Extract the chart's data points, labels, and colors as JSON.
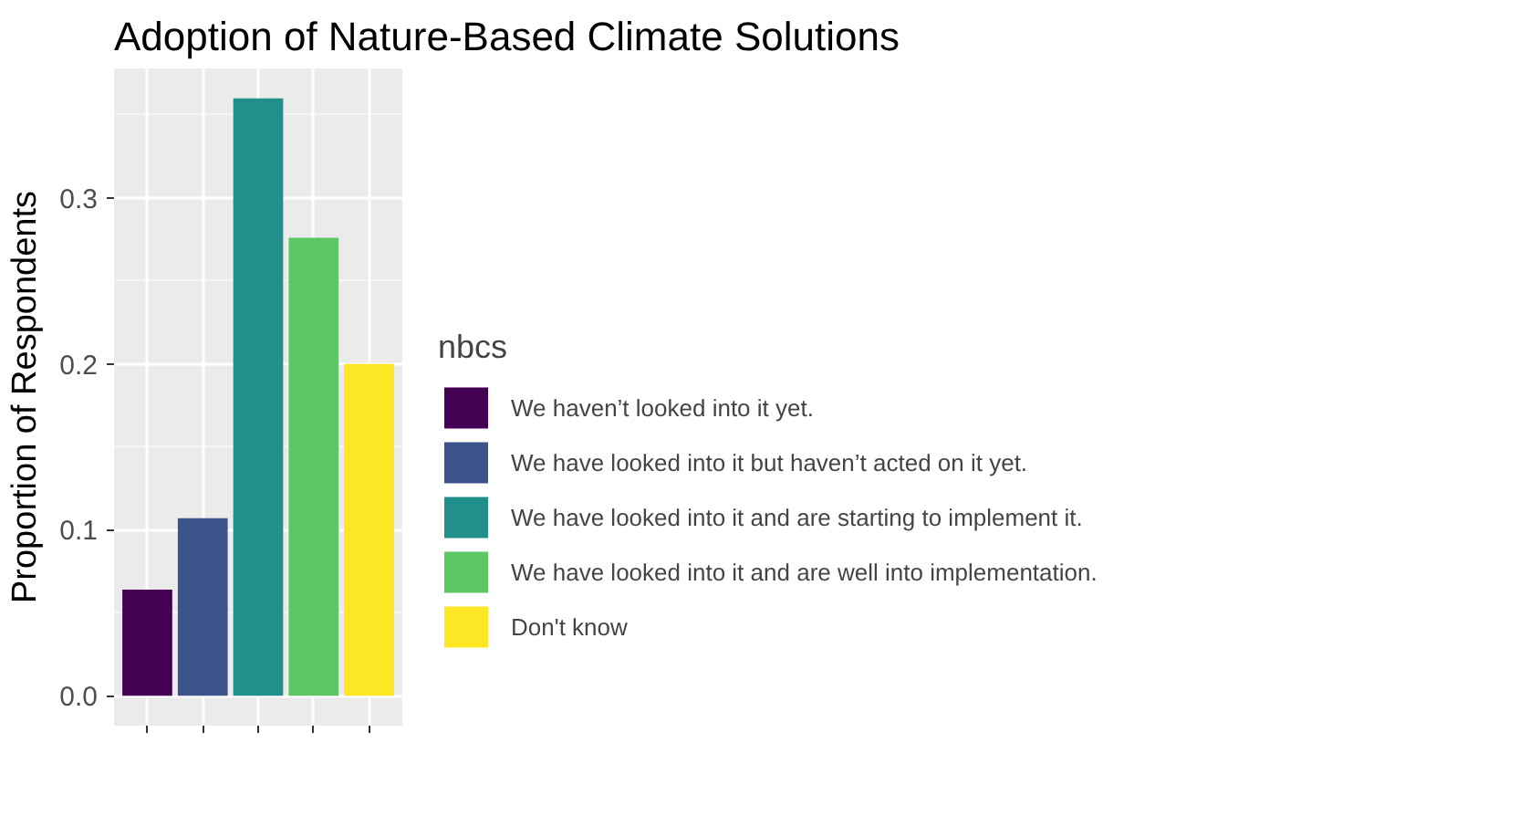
{
  "chart_data": {
    "type": "bar",
    "title": "Adoption of Nature-Based Climate Solutions",
    "ylabel": "Proportion of Respondents",
    "legend_title": "nbcs",
    "categories": [
      null
    ],
    "series": [
      {
        "name": "We haven’t looked into it yet.",
        "color": "#440154",
        "values": [
          0.064
        ]
      },
      {
        "name": "We have looked into it but haven’t acted on it yet.",
        "color": "#3b528b",
        "values": [
          0.107
        ]
      },
      {
        "name": "We have looked into it and are starting to implement it.",
        "color": "#21908c",
        "values": [
          0.36
        ]
      },
      {
        "name": "We have looked into it and are well into implementation.",
        "color": "#5dc863",
        "values": [
          0.276
        ]
      },
      {
        "name": "Don't know",
        "color": "#fde725",
        "values": [
          0.2
        ]
      }
    ],
    "ylim": [
      -0.018,
      0.378
    ],
    "yticks": [
      {
        "value": 0,
        "label": "0.0"
      },
      0.1,
      0.2,
      0.3
    ],
    "grid": true,
    "legend": "right",
    "tick_labels": "y"
  }
}
